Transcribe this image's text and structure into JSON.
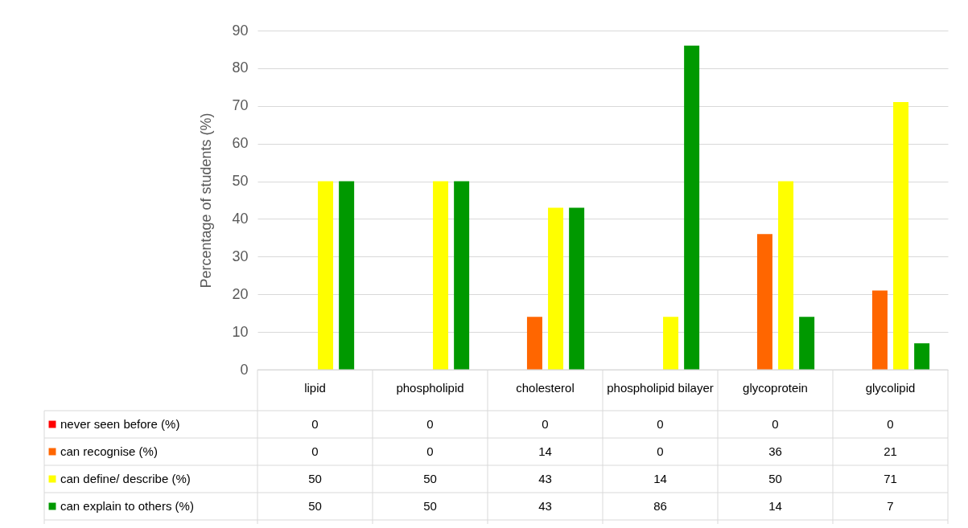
{
  "chart_data": {
    "type": "bar",
    "ylabel": "Percentage of students (%)",
    "categories": [
      "lipid",
      "phospholipid",
      "cholesterol",
      "phospholipid bilayer",
      "glycoprotein",
      "glycolipid"
    ],
    "series": [
      {
        "name": "never seen before (%)",
        "color": "#ff0000",
        "values": [
          0,
          0,
          0,
          0,
          0,
          0
        ]
      },
      {
        "name": "can recognise (%)",
        "color": "#ff6600",
        "values": [
          0,
          0,
          14,
          0,
          36,
          21
        ]
      },
      {
        "name": "can define/ describe (%)",
        "color": "#ffff00",
        "values": [
          50,
          50,
          43,
          14,
          50,
          71
        ]
      },
      {
        "name": "can explain to others (%)",
        "color": "#009900",
        "values": [
          50,
          50,
          43,
          86,
          14,
          7
        ]
      }
    ],
    "ylim": [
      0,
      90
    ],
    "yticks": [
      0,
      10,
      20,
      30,
      40,
      50,
      60,
      70,
      80,
      90
    ],
    "grid": "y",
    "data_labels": true,
    "legend": "bottom left"
  }
}
